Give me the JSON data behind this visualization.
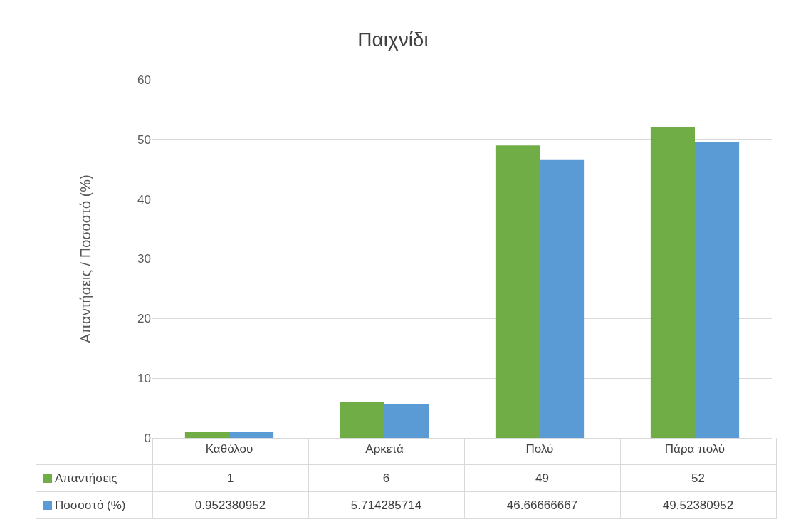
{
  "chart_data": {
    "type": "bar",
    "title": "Παιχνίδι",
    "ylabel": "Απαντήσεις / Ποσοστό (%)",
    "categories": [
      "Καθόλου",
      "Αρκετά",
      "Πολύ",
      "Πάρα πολύ"
    ],
    "series": [
      {
        "name": "Απαντήσεις",
        "color": "#70ad47",
        "values": [
          1,
          6,
          49,
          52
        ]
      },
      {
        "name": "Ποσοστό (%)",
        "color": "#5b9bd5",
        "values": [
          0.952380952,
          5.714285714,
          46.66666667,
          49.52380952
        ]
      }
    ],
    "ylim": [
      0,
      60
    ],
    "yticks": [
      0,
      10,
      20,
      30,
      40,
      50,
      60
    ],
    "grid": "y",
    "legend": "bottom",
    "data_labels": true
  }
}
